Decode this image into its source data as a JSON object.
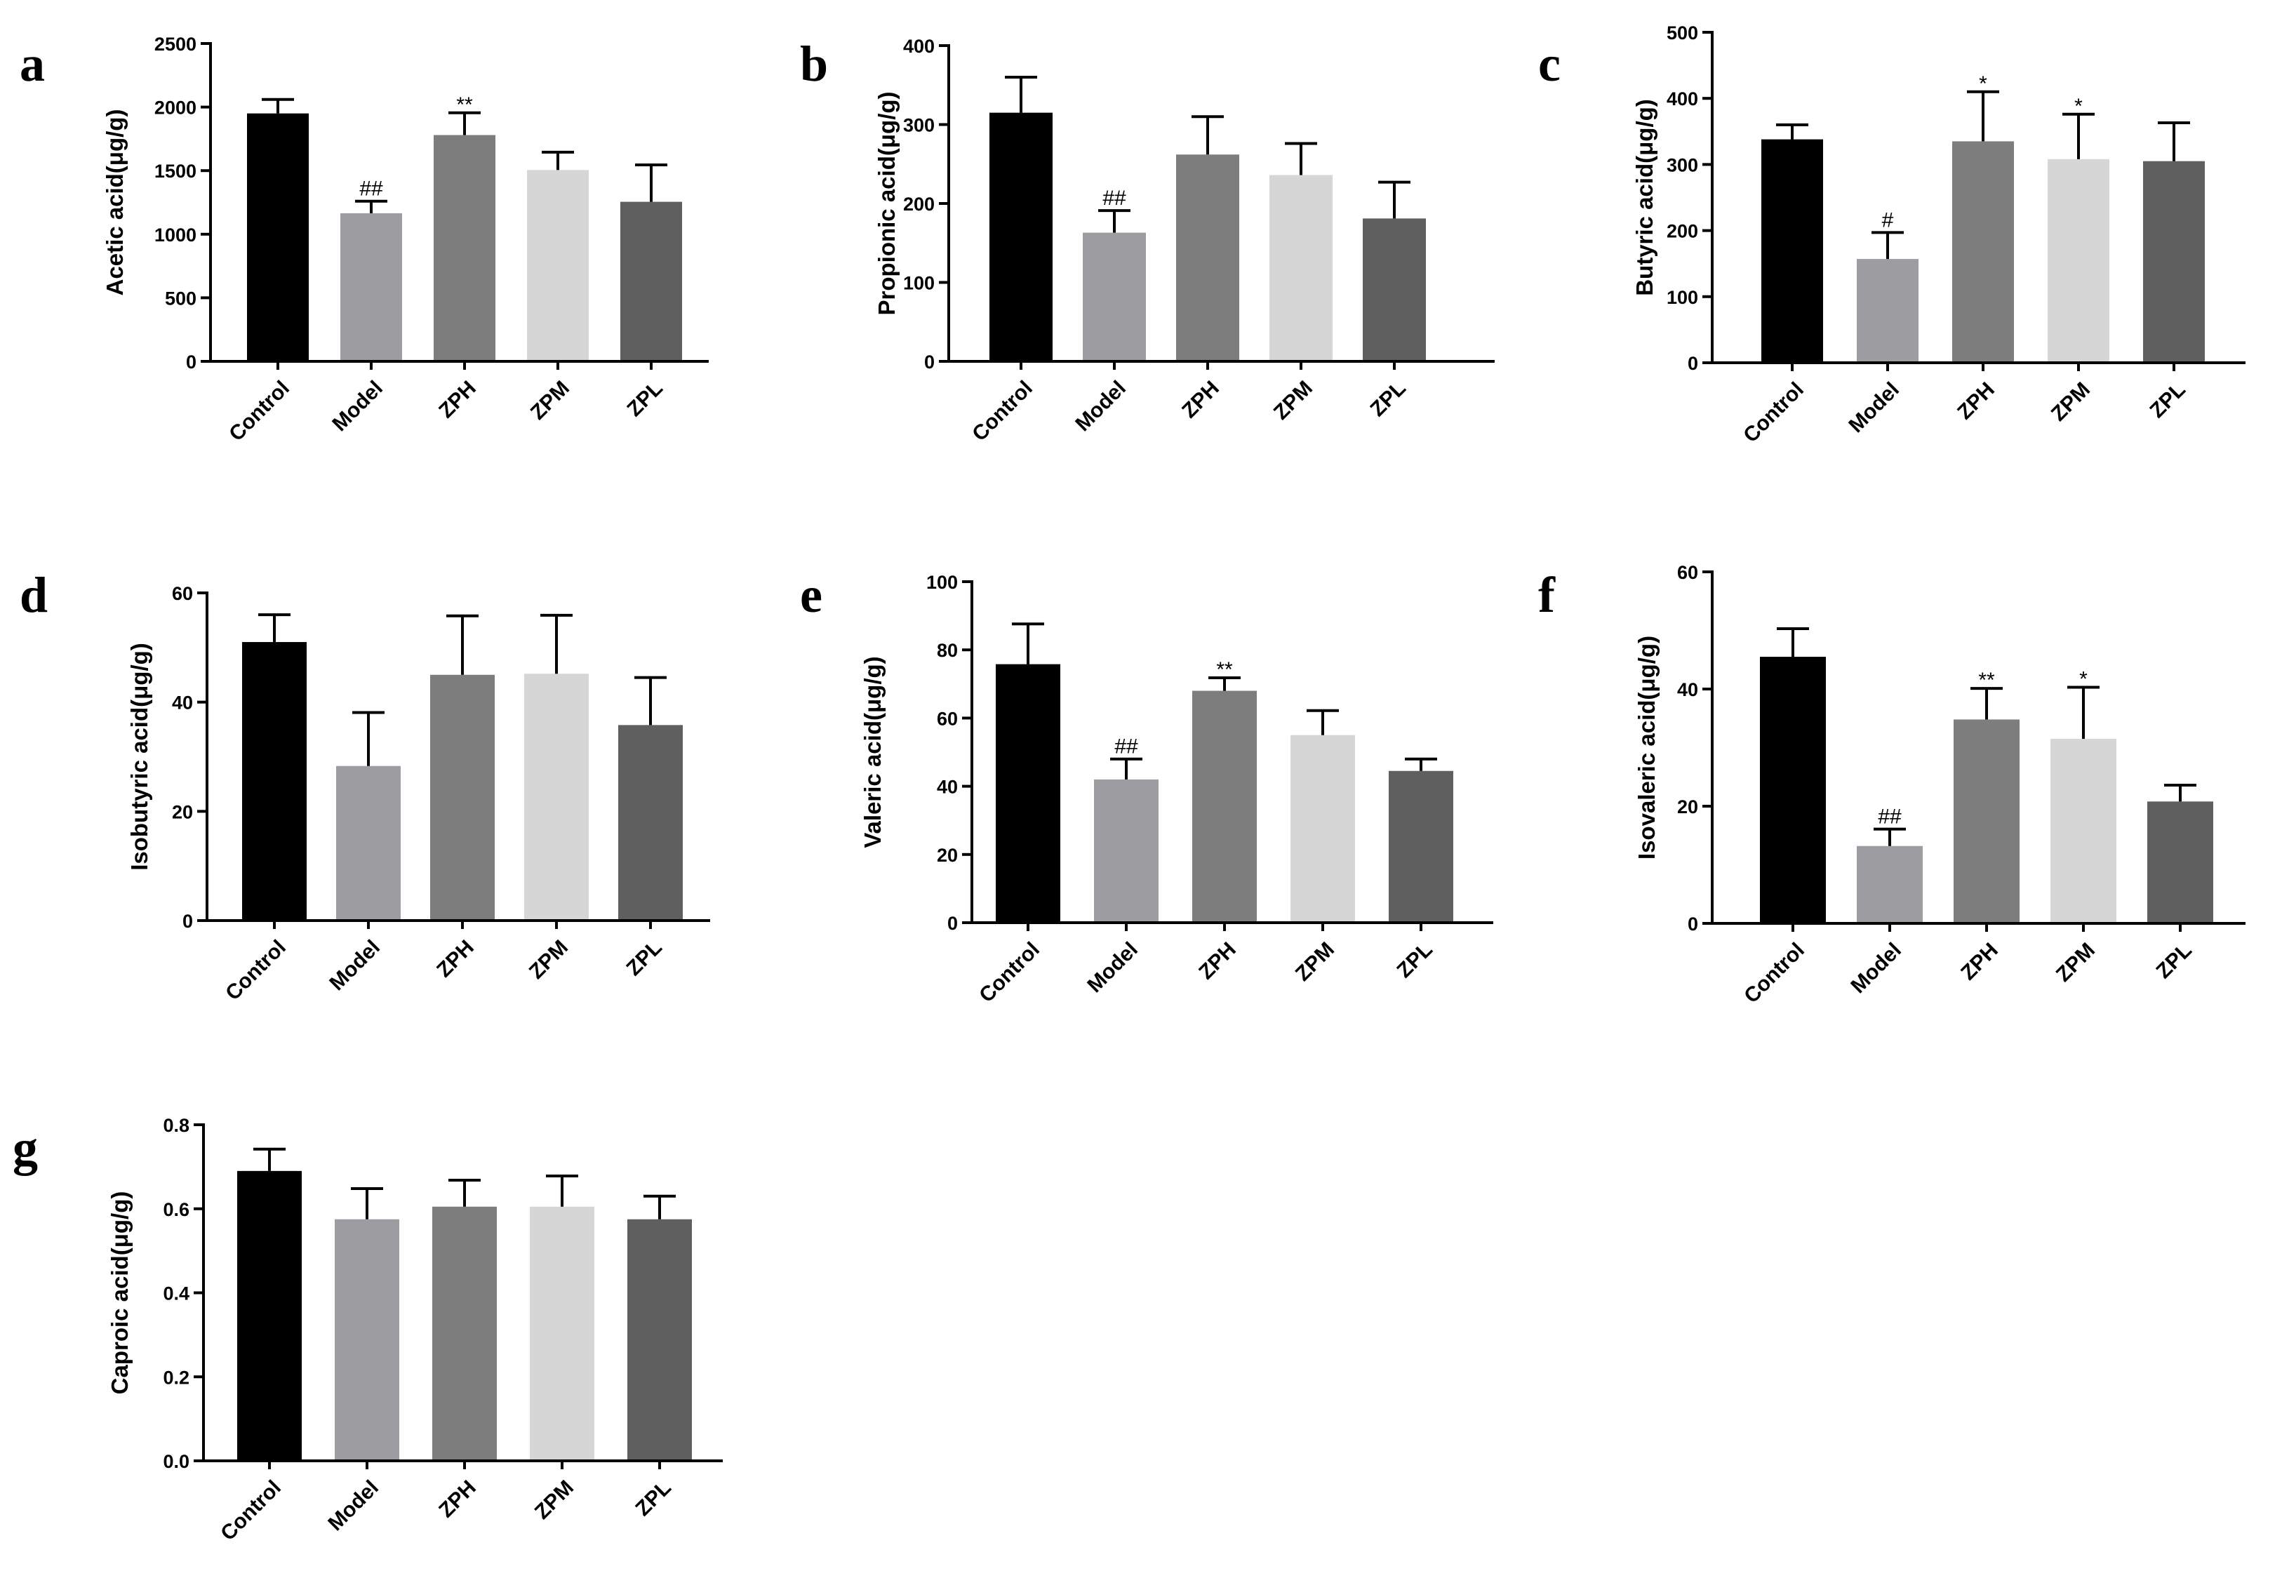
{
  "figure": {
    "categories": [
      "Control",
      "Model",
      "ZPH",
      "ZPM",
      "ZPL"
    ],
    "group_colors": [
      "#000000",
      "#9c9ca1",
      "#7d7d7d",
      "#d6d6d6",
      "#5f5f5f"
    ]
  },
  "chart_data": [
    {
      "type": "bar",
      "panel": "a",
      "categories": [
        "Control",
        "Model",
        "ZPH",
        "ZPM",
        "ZPL"
      ],
      "values": [
        1950,
        1165,
        1780,
        1505,
        1255
      ],
      "errors": [
        110,
        95,
        175,
        140,
        290
      ],
      "annotations": [
        "",
        "##",
        "**",
        "",
        ""
      ],
      "ylabel": "Acetic acid(μg/g)",
      "ylim": [
        0,
        2500
      ],
      "yticks": [
        0,
        500,
        1000,
        1500,
        2000,
        2500
      ],
      "ytick_labels": [
        "0",
        "500",
        "1000",
        "1500",
        "2000",
        "2500"
      ]
    },
    {
      "type": "bar",
      "panel": "b",
      "categories": [
        "Control",
        "Model",
        "ZPH",
        "ZPM",
        "ZPL"
      ],
      "values": [
        315,
        163,
        262,
        236,
        181
      ],
      "errors": [
        45,
        28,
        48,
        40,
        46
      ],
      "annotations": [
        "",
        "##",
        "",
        "",
        ""
      ],
      "ylabel": "Propionic acid(μg/g)",
      "ylim": [
        0,
        400
      ],
      "yticks": [
        0,
        100,
        200,
        300,
        400
      ],
      "ytick_labels": [
        "0",
        "100",
        "200",
        "300",
        "400"
      ]
    },
    {
      "type": "bar",
      "panel": "c",
      "categories": [
        "Control",
        "Model",
        "ZPH",
        "ZPM",
        "ZPL"
      ],
      "values": [
        338,
        157,
        335,
        308,
        305
      ],
      "errors": [
        22,
        40,
        75,
        68,
        58
      ],
      "annotations": [
        "",
        "#",
        "*",
        "*",
        ""
      ],
      "ylabel": "Butyric acid(μg/g)",
      "ylim": [
        0,
        500
      ],
      "yticks": [
        0,
        100,
        200,
        300,
        400,
        500
      ],
      "ytick_labels": [
        "0",
        "100",
        "200",
        "300",
        "400",
        "500"
      ]
    },
    {
      "type": "bar",
      "panel": "d",
      "categories": [
        "Control",
        "Model",
        "ZPH",
        "ZPM",
        "ZPL"
      ],
      "values": [
        51,
        28.3,
        45,
        45.2,
        35.8
      ],
      "errors": [
        5,
        9.8,
        10.8,
        10.7,
        8.7
      ],
      "annotations": [
        "",
        "",
        "",
        "",
        ""
      ],
      "ylabel": "Isobutyric acid(μg/g)",
      "ylim": [
        0,
        60
      ],
      "yticks": [
        0,
        20,
        40,
        60
      ],
      "ytick_labels": [
        "0",
        "20",
        "40",
        "60"
      ]
    },
    {
      "type": "bar",
      "panel": "e",
      "categories": [
        "Control",
        "Model",
        "ZPH",
        "ZPM",
        "ZPL"
      ],
      "values": [
        75.8,
        42,
        68,
        55,
        44.5
      ],
      "errors": [
        11.8,
        6,
        3.8,
        7.2,
        3.5
      ],
      "annotations": [
        "",
        "##",
        "**",
        "",
        ""
      ],
      "ylabel": "Valeric acid(μg/g)",
      "ylim": [
        0,
        100
      ],
      "yticks": [
        0,
        20,
        40,
        60,
        80,
        100
      ],
      "ytick_labels": [
        "0",
        "20",
        "40",
        "60",
        "80",
        "100"
      ]
    },
    {
      "type": "bar",
      "panel": "f",
      "categories": [
        "Control",
        "Model",
        "ZPH",
        "ZPM",
        "ZPL"
      ],
      "values": [
        45.5,
        13.2,
        34.8,
        31.5,
        20.8
      ],
      "errors": [
        4.8,
        2.9,
        5.3,
        8.8,
        2.8
      ],
      "annotations": [
        "",
        "##",
        "**",
        "*",
        ""
      ],
      "ylabel": "Isovaleric acid(μg/g)",
      "ylim": [
        0,
        60
      ],
      "yticks": [
        0,
        20,
        40,
        60
      ],
      "ytick_labels": [
        "0",
        "20",
        "40",
        "60"
      ]
    },
    {
      "type": "bar",
      "panel": "g",
      "categories": [
        "Control",
        "Model",
        "ZPH",
        "ZPM",
        "ZPL"
      ],
      "values": [
        0.69,
        0.575,
        0.605,
        0.605,
        0.575
      ],
      "errors": [
        0.052,
        0.073,
        0.063,
        0.073,
        0.055
      ],
      "annotations": [
        "",
        "",
        "",
        "",
        ""
      ],
      "ylabel": "Caproic acid(μg/g)",
      "ylim": [
        0,
        0.8
      ],
      "yticks": [
        0,
        0.2,
        0.4,
        0.6,
        0.8
      ],
      "ytick_labels": [
        "0.0",
        "0.2",
        "0.4",
        "0.6",
        "0.8"
      ]
    }
  ]
}
